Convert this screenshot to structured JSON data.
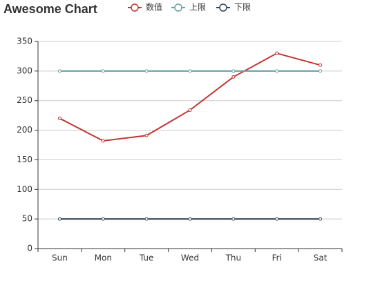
{
  "chart_data": {
    "type": "line",
    "title": "Awesome Chart",
    "categories": [
      "Sun",
      "Mon",
      "Tue",
      "Wed",
      "Thu",
      "Fri",
      "Sat"
    ],
    "series": [
      {
        "name": "数值",
        "color": "#c23531",
        "values": [
          220,
          182,
          191,
          234,
          290,
          330,
          310
        ]
      },
      {
        "name": "上限",
        "color": "#61a0a8",
        "values": [
          300,
          300,
          300,
          300,
          300,
          300,
          300
        ]
      },
      {
        "name": "下限",
        "color": "#2f4554",
        "values": [
          50,
          50,
          50,
          50,
          50,
          50,
          50
        ]
      }
    ],
    "ylim": [
      0,
      350
    ],
    "yticks": [
      0,
      50,
      100,
      150,
      200,
      250,
      300,
      350
    ],
    "grid": true
  }
}
